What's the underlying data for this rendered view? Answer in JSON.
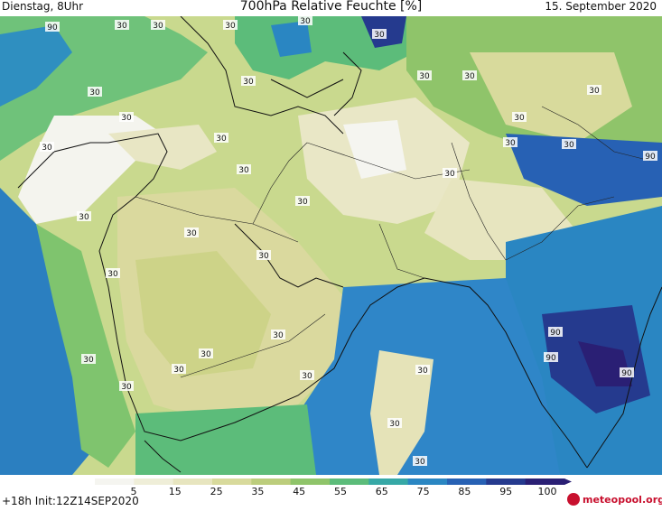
{
  "header": {
    "left": "Dienstag, 8Uhr",
    "title": "700hPa Relative Feuchte [%]",
    "date": "15. September 2020"
  },
  "footer": {
    "run": "+18h Init:12Z14SEP2020",
    "logo": "meteopool.org"
  },
  "colorbar": {
    "ticks": [
      "5",
      "15",
      "25",
      "35",
      "45",
      "55",
      "65",
      "75",
      "85",
      "95",
      "100"
    ],
    "colors": [
      "#f5f5f0",
      "#efeed8",
      "#e7e5bf",
      "#d8da9c",
      "#bccd7c",
      "#8fc46a",
      "#5cbc7a",
      "#36a8a6",
      "#2a86c2",
      "#2761b4",
      "#253a8e",
      "#2a1f74"
    ]
  },
  "map": {
    "contour_labels": [
      {
        "text": "90"
      },
      {
        "text": "30"
      },
      {
        "text": "30"
      },
      {
        "text": "30"
      },
      {
        "text": "30"
      },
      {
        "text": "30"
      },
      {
        "text": "30"
      },
      {
        "text": "30"
      },
      {
        "text": "30"
      },
      {
        "text": "30"
      },
      {
        "text": "30"
      },
      {
        "text": "30"
      },
      {
        "text": "30"
      },
      {
        "text": "30"
      },
      {
        "text": "30"
      },
      {
        "text": "30"
      },
      {
        "text": "30"
      },
      {
        "text": "30"
      },
      {
        "text": "30"
      },
      {
        "text": "30"
      },
      {
        "text": "30"
      },
      {
        "text": "30"
      },
      {
        "text": "30"
      },
      {
        "text": "30"
      },
      {
        "text": "30"
      },
      {
        "text": "30"
      },
      {
        "text": "30"
      },
      {
        "text": "30"
      },
      {
        "text": "30"
      },
      {
        "text": "30"
      },
      {
        "text": "90"
      },
      {
        "text": "90"
      },
      {
        "text": "90"
      },
      {
        "text": "90"
      },
      {
        "text": "30"
      },
      {
        "text": "30"
      },
      {
        "text": "30"
      }
    ]
  }
}
